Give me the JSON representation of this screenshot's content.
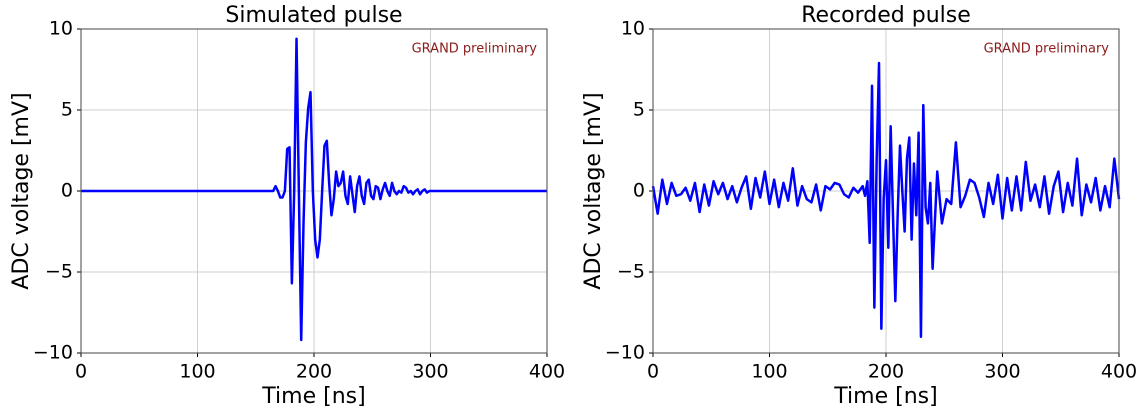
{
  "chart_data": [
    {
      "type": "line",
      "title": "Simulated pulse",
      "xlabel": "Time [ns]",
      "ylabel": "ADC voltage [mV]",
      "annotation": "GRAND preliminary",
      "annotation_color": "#8b1a1a",
      "grid": true,
      "xlim": [
        0,
        400
      ],
      "xticks": [
        0,
        100,
        200,
        300,
        400
      ],
      "ylim": [
        -10,
        10
      ],
      "yticks": [
        {
          "value": -10,
          "label": "−10"
        },
        {
          "value": -5,
          "label": "−5"
        },
        0,
        5,
        10
      ],
      "series": [
        {
          "color": "#0000ff",
          "x": [
            0,
            165,
            167,
            169,
            171,
            173,
            175,
            177,
            179,
            181,
            183,
            185,
            187,
            189,
            191,
            193,
            195,
            197,
            199,
            201,
            203,
            205,
            207,
            209,
            211,
            213,
            215,
            217,
            219,
            221,
            223,
            225,
            227,
            229,
            231,
            233,
            235,
            237,
            239,
            241,
            243,
            245,
            247,
            249,
            251,
            253,
            255,
            257,
            259,
            261,
            263,
            265,
            267,
            269,
            271,
            273,
            275,
            277,
            279,
            281,
            283,
            285,
            287,
            289,
            291,
            293,
            295,
            297,
            299,
            400
          ],
          "values": [
            0,
            0,
            0.3,
            0,
            -0.4,
            -0.4,
            0,
            2.6,
            2.7,
            -5.7,
            0,
            9.4,
            0,
            -9.2,
            -2,
            3,
            5.1,
            6.1,
            0,
            -3,
            -4.1,
            -3,
            0,
            2.8,
            3.1,
            0.5,
            -1.5,
            -0.5,
            1.2,
            0.3,
            0.5,
            1.2,
            -0.3,
            -0.8,
            0.9,
            -0.2,
            -1.3,
            0.3,
            0.9,
            -0.3,
            -0.8,
            0.5,
            0.7,
            -0.3,
            -0.5,
            0.3,
            0.2,
            -0.5,
            0.1,
            0.5,
            0,
            -0.3,
            0.5,
            0,
            -0.2,
            0,
            -0.1,
            0.3,
            0.2,
            -0.1,
            0,
            -0.2,
            0,
            0.1,
            -0.2,
            0,
            0.1,
            -0.1,
            0,
            0
          ]
        }
      ]
    },
    {
      "type": "line",
      "title": "Recorded pulse",
      "xlabel": "Time [ns]",
      "ylabel": "ADC voltage [mV]",
      "annotation": "GRAND preliminary",
      "annotation_color": "#8b1a1a",
      "grid": true,
      "xlim": [
        0,
        400
      ],
      "xticks": [
        0,
        100,
        200,
        300,
        400
      ],
      "ylim": [
        -10,
        10
      ],
      "yticks": [
        {
          "value": -10,
          "label": "−10"
        },
        {
          "value": -5,
          "label": "−5"
        },
        0,
        5,
        10
      ],
      "series": [
        {
          "color": "#0000ff",
          "x": [
            0,
            4,
            8,
            12,
            16,
            20,
            24,
            28,
            32,
            36,
            40,
            44,
            48,
            52,
            56,
            60,
            64,
            68,
            72,
            76,
            80,
            84,
            88,
            92,
            96,
            100,
            104,
            108,
            112,
            116,
            120,
            124,
            128,
            132,
            136,
            140,
            144,
            148,
            152,
            156,
            160,
            164,
            168,
            172,
            176,
            180,
            182,
            184,
            186,
            188,
            190,
            192,
            194,
            196,
            198,
            200,
            202,
            204,
            206,
            208,
            210,
            212,
            214,
            216,
            218,
            220,
            222,
            224,
            226,
            228,
            230,
            232,
            234,
            236,
            238,
            240,
            244,
            248,
            252,
            256,
            260,
            264,
            268,
            272,
            276,
            280,
            284,
            288,
            292,
            296,
            300,
            304,
            308,
            312,
            316,
            320,
            324,
            328,
            332,
            336,
            340,
            344,
            348,
            352,
            356,
            360,
            364,
            368,
            372,
            376,
            380,
            384,
            388,
            392,
            396,
            400
          ],
          "values": [
            0.3,
            -1.4,
            0.7,
            -0.8,
            0.5,
            -0.3,
            -0.2,
            0.2,
            -0.6,
            0.5,
            -1.3,
            0.4,
            -0.9,
            0.6,
            -0.2,
            0.5,
            -0.5,
            0.3,
            -0.7,
            0.2,
            0.9,
            -1.1,
            0.8,
            -0.4,
            1.2,
            -0.8,
            0.7,
            -1.0,
            0.5,
            -0.6,
            1.4,
            -0.9,
            0.3,
            -0.5,
            -0.7,
            0.4,
            -1.2,
            0.3,
            0.1,
            0.5,
            0.4,
            -0.2,
            -0.4,
            0.2,
            -0.1,
            0.3,
            -0.3,
            0.6,
            -3.2,
            6.5,
            -7.2,
            2,
            7.9,
            -8.5,
            -0.5,
            1.9,
            -3.5,
            4,
            -1.5,
            -6.8,
            -1.5,
            2.8,
            0,
            -2.5,
            2,
            3.3,
            -3,
            1.7,
            -1.5,
            3.6,
            -9,
            5.3,
            -1,
            -2,
            0.5,
            -4.8,
            1.2,
            -2,
            -0.5,
            -0.8,
            3,
            -1,
            -0.3,
            0.7,
            0.5,
            -0.4,
            -1.6,
            0.5,
            -0.8,
            1,
            -1.7,
            0.8,
            -1.2,
            0.9,
            -1.2,
            1.8,
            -0.6,
            0.4,
            -1.0,
            0.9,
            -1.4,
            0.3,
            1.2,
            -1.3,
            0.5,
            -0.9,
            2,
            -1.5,
            0.4,
            -0.7,
            0.8,
            -1.2,
            0.3,
            -1,
            2,
            -0.5
          ]
        }
      ]
    }
  ]
}
